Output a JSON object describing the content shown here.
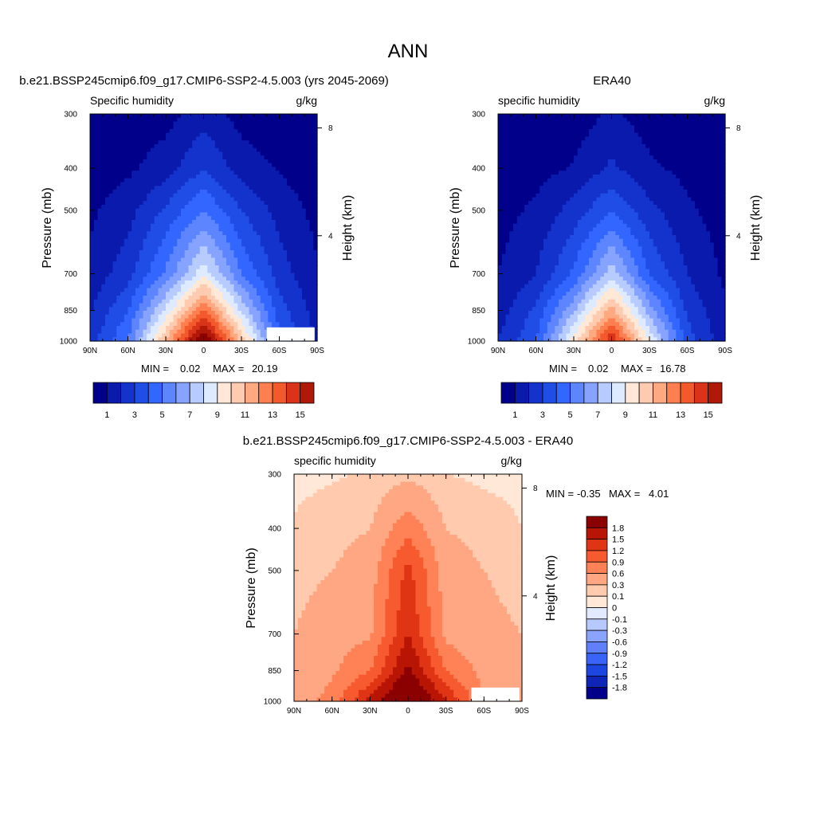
{
  "figure": {
    "title": "ANN"
  },
  "colors": {
    "abs_scale": [
      "#00008b",
      "#0a1aad",
      "#1433cc",
      "#1f4de6",
      "#3366ff",
      "#5c85ff",
      "#85a3ff",
      "#b8cbff",
      "#ddeaff",
      "#ffe8d6",
      "#ffcbb0",
      "#ffa980",
      "#ff7f50",
      "#f25a2c",
      "#d9341a",
      "#b01808",
      "#8b0000"
    ],
    "diff_scale": [
      "#00008b",
      "#0e26b8",
      "#1d46e0",
      "#3a63f7",
      "#6080fa",
      "#8aa3fb",
      "#b7c8fd",
      "#e1eafe",
      "#ffe8d8",
      "#ffcaae",
      "#ffa783",
      "#ff8156",
      "#f85a30",
      "#e03515",
      "#b81505",
      "#8b0000"
    ]
  },
  "chart_data": [
    {
      "type": "heatmap",
      "panel_title": "b.e21.BSSP245cmip6.f09_g17.CMIP6-SSP2-4.5.003 (yrs 2045-2069)",
      "variable_label": "Specific humidity",
      "units": "g/kg",
      "ylabel": "Pressure (mb)",
      "y2label": "Height (km)",
      "xticks": [
        "90N",
        "60N",
        "30N",
        "0",
        "30S",
        "60S",
        "90S"
      ],
      "yticks": [
        "300",
        "400",
        "500",
        "700",
        "850",
        "1000"
      ],
      "y2ticks": [
        "8",
        "4"
      ],
      "min_label": "MIN =",
      "min_value": "0.02",
      "max_label": "MAX =",
      "max_value": "20.19",
      "colorbar_labels": [
        "1",
        "3",
        "5",
        "7",
        "9",
        "11",
        "13",
        "15"
      ],
      "x": [
        -90,
        -60,
        -30,
        0,
        30,
        60,
        90
      ],
      "y": [
        300,
        400,
        500,
        700,
        850,
        1000
      ],
      "z": [
        [
          0.4,
          0.4,
          0.6,
          1.6,
          0.6,
          0.4,
          0.3
        ],
        [
          0.5,
          0.8,
          1.5,
          3.0,
          1.5,
          0.9,
          0.4
        ],
        [
          0.8,
          1.6,
          3.2,
          5.0,
          3.0,
          1.6,
          0.7
        ],
        [
          1.3,
          2.6,
          5.2,
          8.7,
          5.0,
          2.5,
          1.1
        ],
        [
          1.9,
          4.0,
          8.2,
          13.2,
          7.8,
          3.5,
          1.5
        ],
        [
          2.6,
          5.0,
          11.2,
          17.5,
          10.8,
          4.2,
          1.9
        ]
      ]
    },
    {
      "type": "heatmap",
      "panel_title": "ERA40",
      "variable_label": "specific humidity",
      "units": "g/kg",
      "ylabel": "Pressure (mb)",
      "y2label": "Height (km)",
      "xticks": [
        "90N",
        "60N",
        "30N",
        "0",
        "30S",
        "60S",
        "90S"
      ],
      "yticks": [
        "300",
        "400",
        "500",
        "700",
        "850",
        "1000"
      ],
      "y2ticks": [
        "8",
        "4"
      ],
      "min_label": "MIN =",
      "min_value": "0.02",
      "max_label": "MAX =",
      "max_value": "16.78",
      "colorbar_labels": [
        "1",
        "3",
        "5",
        "7",
        "9",
        "11",
        "13",
        "15"
      ],
      "x": [
        -90,
        -60,
        -30,
        0,
        30,
        60,
        90
      ],
      "y": [
        300,
        400,
        500,
        700,
        850,
        1000
      ],
      "z": [
        [
          0.3,
          0.3,
          0.4,
          1.2,
          0.5,
          0.3,
          0.2
        ],
        [
          0.4,
          0.6,
          1.1,
          2.2,
          1.2,
          0.7,
          0.3
        ],
        [
          0.6,
          1.2,
          2.4,
          4.0,
          2.3,
          1.2,
          0.5
        ],
        [
          1.0,
          2.0,
          4.2,
          7.6,
          4.0,
          2.0,
          0.8
        ],
        [
          1.5,
          3.2,
          6.8,
          11.5,
          6.5,
          2.8,
          1.1
        ],
        [
          2.0,
          4.0,
          9.5,
          15.0,
          9.0,
          3.5,
          1.4
        ]
      ]
    },
    {
      "type": "heatmap",
      "panel_title": "b.e21.BSSP245cmip6.f09_g17.CMIP6-SSP2-4.5.003 - ERA40",
      "variable_label": "specific humidity",
      "units": "g/kg",
      "ylabel": "Pressure (mb)",
      "y2label": "Height (km)",
      "xticks": [
        "90N",
        "60N",
        "30N",
        "0",
        "30S",
        "60S",
        "90S"
      ],
      "yticks": [
        "300",
        "400",
        "500",
        "700",
        "850",
        "1000"
      ],
      "y2ticks": [
        "8",
        "4"
      ],
      "min_label": "MIN =",
      "min_value": "-0.35",
      "max_label": "MAX =",
      "max_value": "4.01",
      "colorbar_labels": [
        "1.8",
        "1.5",
        "1.2",
        "0.9",
        "0.6",
        "0.3",
        "0.1",
        "0",
        "-0.1",
        "-0.3",
        "-0.6",
        "-0.9",
        "-1.2",
        "-1.5",
        "-1.8"
      ],
      "x": [
        -90,
        -60,
        -30,
        0,
        30,
        60,
        90
      ],
      "y": [
        300,
        400,
        500,
        700,
        850,
        1000
      ],
      "z": [
        [
          0.05,
          0.08,
          0.12,
          0.25,
          0.1,
          0.06,
          0.05
        ],
        [
          0.12,
          0.2,
          0.3,
          0.8,
          0.3,
          0.2,
          0.1
        ],
        [
          0.22,
          0.3,
          0.45,
          1.3,
          0.45,
          0.3,
          0.18
        ],
        [
          0.3,
          0.45,
          0.55,
          1.5,
          0.5,
          0.4,
          0.3
        ],
        [
          0.35,
          0.55,
          0.9,
          1.9,
          0.9,
          0.5,
          0.35
        ],
        [
          0.45,
          0.7,
          1.6,
          2.4,
          1.5,
          0.6,
          0.4
        ]
      ]
    }
  ]
}
